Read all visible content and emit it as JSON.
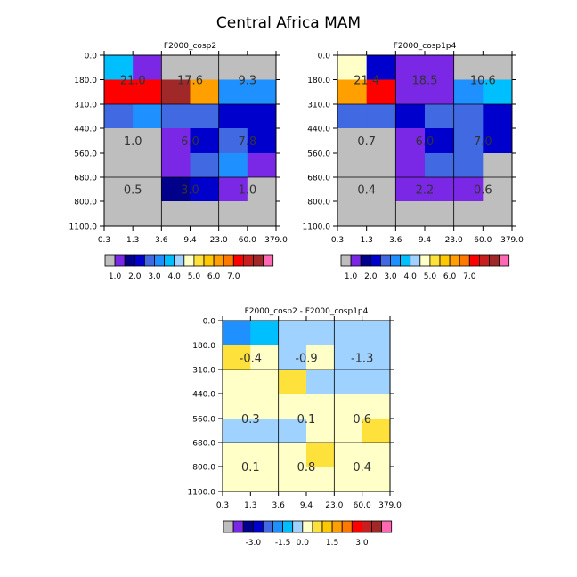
{
  "title": "Central Africa MAM",
  "palette": {
    "full": [
      "#bebebe",
      "#7a28e6",
      "#00008b",
      "#0000cd",
      "#4169e1",
      "#1e90ff",
      "#00bfff",
      "#a0d2ff",
      "#ffffc8",
      "#ffe13c",
      "#ffc800",
      "#ffa000",
      "#ff7800",
      "#ff0000",
      "#c81e1e",
      "#a02828",
      "#ff69b4"
    ],
    "dark_blue": "#0000cd",
    "mid_blue": "#4169e1",
    "azure": "#1e90ff",
    "light_blue": "#a0d2ff",
    "pale_yellow": "#ffffc8",
    "yellow": "#ffe13c",
    "gold": "#ffc800",
    "orange": "#ffa000",
    "red": "#ff0000",
    "purple": "#7a28e6",
    "navy": "#00008b",
    "gray": "#bebebe",
    "brown_red": "#a02828"
  },
  "chart_data": [
    {
      "type": "heatmap",
      "title": "F2000_cosp2",
      "x_edges": [
        "0.3",
        "1.3",
        "3.6",
        "9.4",
        "23.0",
        "60.0",
        "379.0"
      ],
      "y_edges": [
        "0.0",
        "180.0",
        "310.0",
        "440.0",
        "560.0",
        "680.0",
        "800.0",
        "1100.0"
      ],
      "grid_on": true,
      "rows": [
        [
          "#00bfff",
          "#7a28e6",
          "#bebebe",
          "#bebebe",
          "#bebebe",
          "#bebebe"
        ],
        [
          "#ff0000",
          "#ff0000",
          "#a02828",
          "#ffa000",
          "#1e90ff",
          "#1e90ff"
        ],
        [
          "#4169e1",
          "#1e90ff",
          "#4169e1",
          "#4169e1",
          "#0000cd",
          "#0000cd"
        ],
        [
          "#bebebe",
          "#bebebe",
          "#7a28e6",
          "#0000cd",
          "#4169e1",
          "#0000cd"
        ],
        [
          "#bebebe",
          "#bebebe",
          "#7a28e6",
          "#4169e1",
          "#1e90ff",
          "#7a28e6"
        ],
        [
          "#bebebe",
          "#bebebe",
          "#00008b",
          "#0000cd",
          "#7a28e6",
          "#bebebe"
        ],
        [
          "#bebebe",
          "#bebebe",
          "#bebebe",
          "#bebebe",
          "#bebebe",
          "#bebebe"
        ]
      ],
      "labels": [
        {
          "text": "21.0",
          "col": 0.5,
          "row": 1
        },
        {
          "text": "17.6",
          "col": 2.5,
          "row": 1
        },
        {
          "text": "9.3",
          "col": 4.5,
          "row": 1
        },
        {
          "text": "1.0",
          "col": 0.5,
          "row": 3.5
        },
        {
          "text": "6.0",
          "col": 2.5,
          "row": 3.5
        },
        {
          "text": "7.8",
          "col": 4.5,
          "row": 3.5
        },
        {
          "text": "0.5",
          "col": 0.5,
          "row": 5.5
        },
        {
          "text": "3.0",
          "col": 2.5,
          "row": 5.5
        },
        {
          "text": "1.0",
          "col": 4.5,
          "row": 5.5
        }
      ],
      "legend": {
        "colors": [
          "#bebebe",
          "#7a28e6",
          "#00008b",
          "#0000cd",
          "#4169e1",
          "#1e90ff",
          "#00bfff",
          "#a0d2ff",
          "#ffffc8",
          "#ffe13c",
          "#ffc800",
          "#ffa000",
          "#ff7800",
          "#ff0000",
          "#c81e1e",
          "#a02828",
          "#ff69b4"
        ],
        "ticks": [
          "1.0",
          "2.0",
          "3.0",
          "4.0",
          "5.0",
          "6.0",
          "7.0"
        ],
        "tick_after_box": [
          1,
          3,
          5,
          7,
          9,
          11,
          13
        ]
      }
    },
    {
      "type": "heatmap",
      "title": "F2000_cosp1p4",
      "x_edges": [
        "0.3",
        "1.3",
        "3.6",
        "9.4",
        "23.0",
        "60.0",
        "379.0"
      ],
      "y_edges": [
        "0.0",
        "180.0",
        "310.0",
        "440.0",
        "560.0",
        "680.0",
        "800.0",
        "1100.0"
      ],
      "grid_on": true,
      "rows": [
        [
          "#ffffc8",
          "#0000cd",
          "#7a28e6",
          "#7a28e6",
          "#bebebe",
          "#bebebe"
        ],
        [
          "#ffa000",
          "#ff0000",
          "#7a28e6",
          "#7a28e6",
          "#1e90ff",
          "#00bfff"
        ],
        [
          "#4169e1",
          "#4169e1",
          "#0000cd",
          "#4169e1",
          "#4169e1",
          "#0000cd"
        ],
        [
          "#bebebe",
          "#bebebe",
          "#7a28e6",
          "#0000cd",
          "#4169e1",
          "#0000cd"
        ],
        [
          "#bebebe",
          "#bebebe",
          "#7a28e6",
          "#4169e1",
          "#4169e1",
          "#bebebe"
        ],
        [
          "#bebebe",
          "#bebebe",
          "#7a28e6",
          "#7a28e6",
          "#7a28e6",
          "#bebebe"
        ],
        [
          "#bebebe",
          "#bebebe",
          "#bebebe",
          "#bebebe",
          "#bebebe",
          "#bebebe"
        ]
      ],
      "labels": [
        {
          "text": "21.4",
          "col": 0.5,
          "row": 1
        },
        {
          "text": "18.5",
          "col": 2.5,
          "row": 1
        },
        {
          "text": "10.6",
          "col": 4.5,
          "row": 1
        },
        {
          "text": "0.7",
          "col": 0.5,
          "row": 3.5
        },
        {
          "text": "6.0",
          "col": 2.5,
          "row": 3.5
        },
        {
          "text": "7.0",
          "col": 4.5,
          "row": 3.5
        },
        {
          "text": "0.4",
          "col": 0.5,
          "row": 5.5
        },
        {
          "text": "2.2",
          "col": 2.5,
          "row": 5.5
        },
        {
          "text": "0.6",
          "col": 4.5,
          "row": 5.5
        }
      ],
      "legend": {
        "colors": [
          "#bebebe",
          "#7a28e6",
          "#00008b",
          "#0000cd",
          "#4169e1",
          "#1e90ff",
          "#00bfff",
          "#a0d2ff",
          "#ffffc8",
          "#ffe13c",
          "#ffc800",
          "#ffa000",
          "#ff7800",
          "#ff0000",
          "#c81e1e",
          "#a02828",
          "#ff69b4"
        ],
        "ticks": [
          "1.0",
          "2.0",
          "3.0",
          "4.0",
          "5.0",
          "6.0",
          "7.0"
        ],
        "tick_after_box": [
          1,
          3,
          5,
          7,
          9,
          11,
          13
        ]
      }
    },
    {
      "type": "heatmap",
      "title": "F2000_cosp2 - F2000_cosp1p4",
      "x_edges": [
        "0.3",
        "1.3",
        "3.6",
        "9.4",
        "23.0",
        "60.0",
        "379.0"
      ],
      "y_edges": [
        "0.0",
        "180.0",
        "310.0",
        "440.0",
        "560.0",
        "680.0",
        "800.0",
        "1100.0"
      ],
      "grid_on": true,
      "rows": [
        [
          "#1e90ff",
          "#00bfff",
          "#a0d2ff",
          "#a0d2ff",
          "#a0d2ff",
          "#a0d2ff"
        ],
        [
          "#ffe13c",
          "#ffffc8",
          "#a0d2ff",
          "#ffffc8",
          "#a0d2ff",
          "#a0d2ff"
        ],
        [
          "#ffffc8",
          "#ffffc8",
          "#ffe13c",
          "#a0d2ff",
          "#a0d2ff",
          "#a0d2ff"
        ],
        [
          "#ffffc8",
          "#ffffc8",
          "#ffffc8",
          "#ffffc8",
          "#ffffc8",
          "#ffffc8"
        ],
        [
          "#a0d2ff",
          "#a0d2ff",
          "#a0d2ff",
          "#ffffc8",
          "#ffffc8",
          "#ffe13c"
        ],
        [
          "#ffffc8",
          "#ffffc8",
          "#ffffc8",
          "#ffe13c",
          "#ffffc8",
          "#ffffc8"
        ],
        [
          "#ffffc8",
          "#ffffc8",
          "#ffffc8",
          "#ffffc8",
          "#ffffc8",
          "#ffffc8"
        ]
      ],
      "labels": [
        {
          "text": "-0.4",
          "col": 0.5,
          "row": 1.5
        },
        {
          "text": "-0.9",
          "col": 2.5,
          "row": 1.5
        },
        {
          "text": "-1.3",
          "col": 4.5,
          "row": 1.5
        },
        {
          "text": "0.3",
          "col": 0.5,
          "row": 4
        },
        {
          "text": "0.1",
          "col": 2.5,
          "row": 4
        },
        {
          "text": "0.6",
          "col": 4.5,
          "row": 4
        },
        {
          "text": "0.1",
          "col": 0.5,
          "row": 6
        },
        {
          "text": "0.8",
          "col": 2.5,
          "row": 6
        },
        {
          "text": "0.4",
          "col": 4.5,
          "row": 6
        }
      ],
      "legend": {
        "colors": [
          "#bebebe",
          "#7a28e6",
          "#00008b",
          "#0000cd",
          "#4169e1",
          "#1e90ff",
          "#00bfff",
          "#a0d2ff",
          "#ffffc8",
          "#ffe13c",
          "#ffc800",
          "#ffa000",
          "#ff7800",
          "#ff0000",
          "#c81e1e",
          "#a02828",
          "#ff69b4"
        ],
        "ticks": [
          "-3.0",
          "-1.5",
          "0.0",
          "1.5",
          "3.0"
        ],
        "tick_after_box": [
          3,
          6,
          8,
          11,
          14
        ]
      }
    }
  ]
}
